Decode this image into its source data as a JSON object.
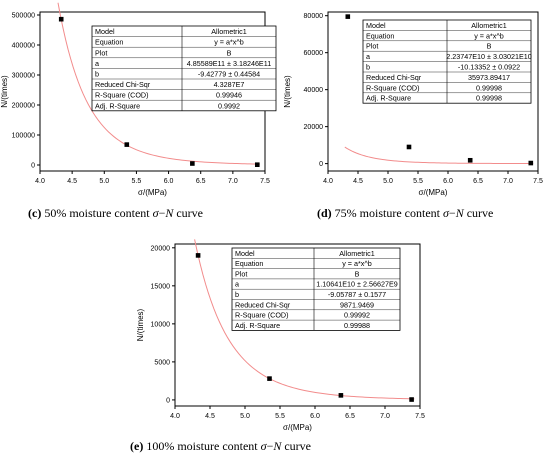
{
  "chart_data": [
    {
      "id": "c",
      "type": "scatter",
      "caption": {
        "label": "(c)",
        "text": "50% moisture content ",
        "sigma": "σ",
        "dash": "−",
        "n": "N",
        "tail": " curve"
      },
      "xlabel": "σ/(MPa)",
      "ylabel": "N/(times)",
      "xlim": [
        4.0,
        7.5
      ],
      "ylim": [
        -20000,
        510000
      ],
      "xticks": [
        "4.0",
        "4.5",
        "5.0",
        "5.5",
        "6.0",
        "6.5",
        "7.0",
        "7.5"
      ],
      "yticks": [
        0,
        100000,
        200000,
        300000,
        400000,
        500000
      ],
      "ytick_labels": [
        "0",
        "100000",
        "200000",
        "300000",
        "400000",
        "500000"
      ],
      "points": [
        {
          "x": 4.33,
          "y": 486000
        },
        {
          "x": 5.35,
          "y": 68000
        },
        {
          "x": 6.37,
          "y": 5000
        },
        {
          "x": 7.38,
          "y": 1000
        }
      ],
      "fit": {
        "a": 485589000000.0,
        "b": -9.42779,
        "color": "#f28c8c"
      },
      "table": [
        [
          "Model",
          "Allometric1"
        ],
        [
          "Equation",
          "y = a*x^b"
        ],
        [
          "Plot",
          "B"
        ],
        [
          "a",
          "4.85589E11 ± 3.18246E11"
        ],
        [
          "b",
          "-9.42779 ± 0.44584"
        ],
        [
          "Reduced Chi-Sqr",
          "4.3287E7"
        ],
        [
          "R-Square (COD)",
          "0.99946"
        ],
        [
          "Adj. R-Square",
          "0.9992"
        ]
      ]
    },
    {
      "id": "d",
      "type": "scatter",
      "caption": {
        "label": "(d)",
        "text": "75% moisture content ",
        "sigma": "σ",
        "dash": "−",
        "n": "N",
        "tail": " curve"
      },
      "xlabel": "σ/(MPa)",
      "ylabel": "N/(times)",
      "xlim": [
        4.0,
        7.5
      ],
      "ylim": [
        -4000,
        82000
      ],
      "xticks": [
        "4.0",
        "4.5",
        "5.0",
        "5.5",
        "6.0",
        "6.5",
        "7.0",
        "7.5"
      ],
      "yticks": [
        0,
        20000,
        40000,
        60000,
        80000
      ],
      "ytick_labels": [
        "0",
        "20000",
        "40000",
        "60000",
        "80000"
      ],
      "points": [
        {
          "x": 4.33,
          "y": 79500
        },
        {
          "x": 5.35,
          "y": 9000
        },
        {
          "x": 6.37,
          "y": 1800
        },
        {
          "x": 7.38,
          "y": 300
        }
      ],
      "fit": {
        "a": 22374700000.0,
        "b": -10.13352,
        "color": "#f28c8c"
      },
      "table": [
        [
          "Model",
          "Allometric1"
        ],
        [
          "Equation",
          "y = a*x^b"
        ],
        [
          "Plot",
          "B"
        ],
        [
          "a",
          "2.23747E10 ± 3.03021E10"
        ],
        [
          "b",
          "-10.13352 ± 0.0922"
        ],
        [
          "Reduced Chi-Sqr",
          "35973.89417"
        ],
        [
          "R-Square (COD)",
          "0.99998"
        ],
        [
          "Adj. R-Square",
          "0.99998"
        ]
      ]
    },
    {
      "id": "e",
      "type": "scatter",
      "caption": {
        "label": "(e)",
        "text": "100% moisture content ",
        "sigma": "σ",
        "dash": "−",
        "n": "N",
        "tail": " curve"
      },
      "xlabel": "σ/(MPa)",
      "ylabel": "N/(times)",
      "xlim": [
        4.0,
        7.5
      ],
      "ylim": [
        -800,
        20500
      ],
      "xticks": [
        "4.0",
        "4.5",
        "5.0",
        "5.5",
        "6.0",
        "6.5",
        "7.0",
        "7.5"
      ],
      "yticks": [
        0,
        5000,
        10000,
        15000,
        20000
      ],
      "ytick_labels": [
        "0",
        "5000",
        "10000",
        "15000",
        "20000"
      ],
      "points": [
        {
          "x": 4.33,
          "y": 19000
        },
        {
          "x": 5.35,
          "y": 2800
        },
        {
          "x": 6.37,
          "y": 600
        },
        {
          "x": 7.38,
          "y": 50
        }
      ],
      "fit": {
        "a": 11064100000.0,
        "b": -9.05787,
        "color": "#f28c8c"
      },
      "table": [
        [
          "Model",
          "Allometric1"
        ],
        [
          "Equation",
          "y = a*x^b"
        ],
        [
          "Plot",
          "B"
        ],
        [
          "a",
          "1.10641E10 ± 2.56627E9"
        ],
        [
          "b",
          "-9.05787 ± 0.1577"
        ],
        [
          "Reduced Chi-Sqr",
          "9871.9469"
        ],
        [
          "R-Square (COD)",
          "0.99992"
        ],
        [
          "Adj. R-Square",
          "0.99988"
        ]
      ]
    }
  ]
}
